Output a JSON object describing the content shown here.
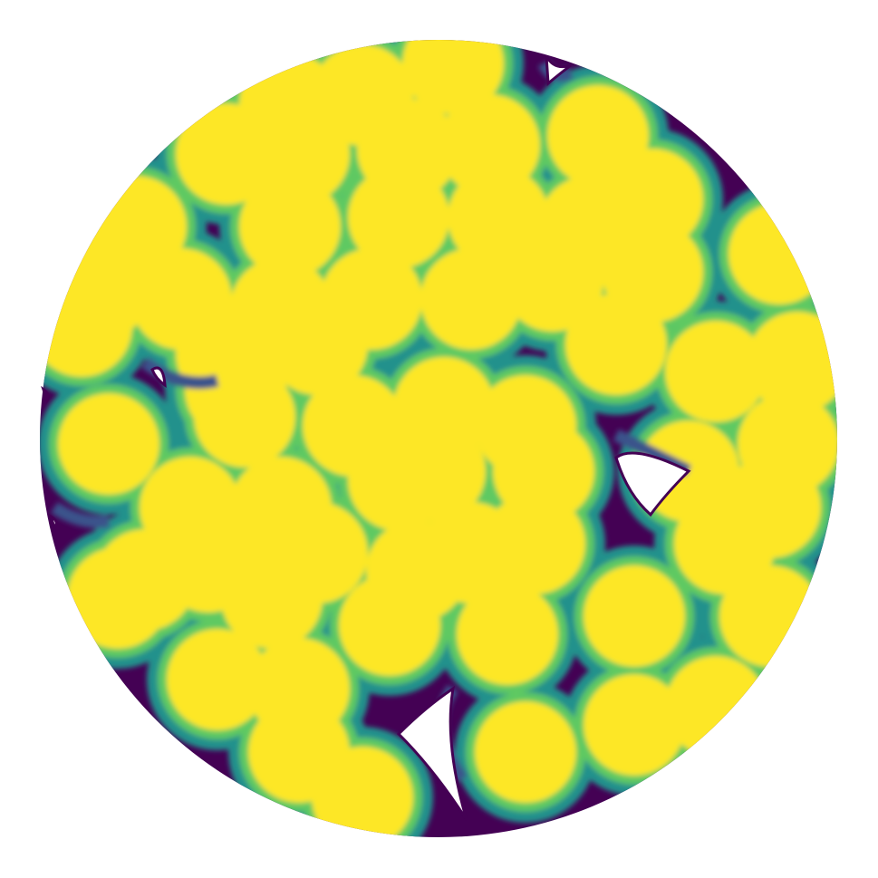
{
  "figure": {
    "shape": "circular-disc",
    "colormap": "viridis",
    "colors": {
      "background": "#ffffff",
      "low": "#440154",
      "low_mid": "#3b528b",
      "mid": "#21918c",
      "high_mid": "#5ec962",
      "high": "#fde725"
    }
  }
}
